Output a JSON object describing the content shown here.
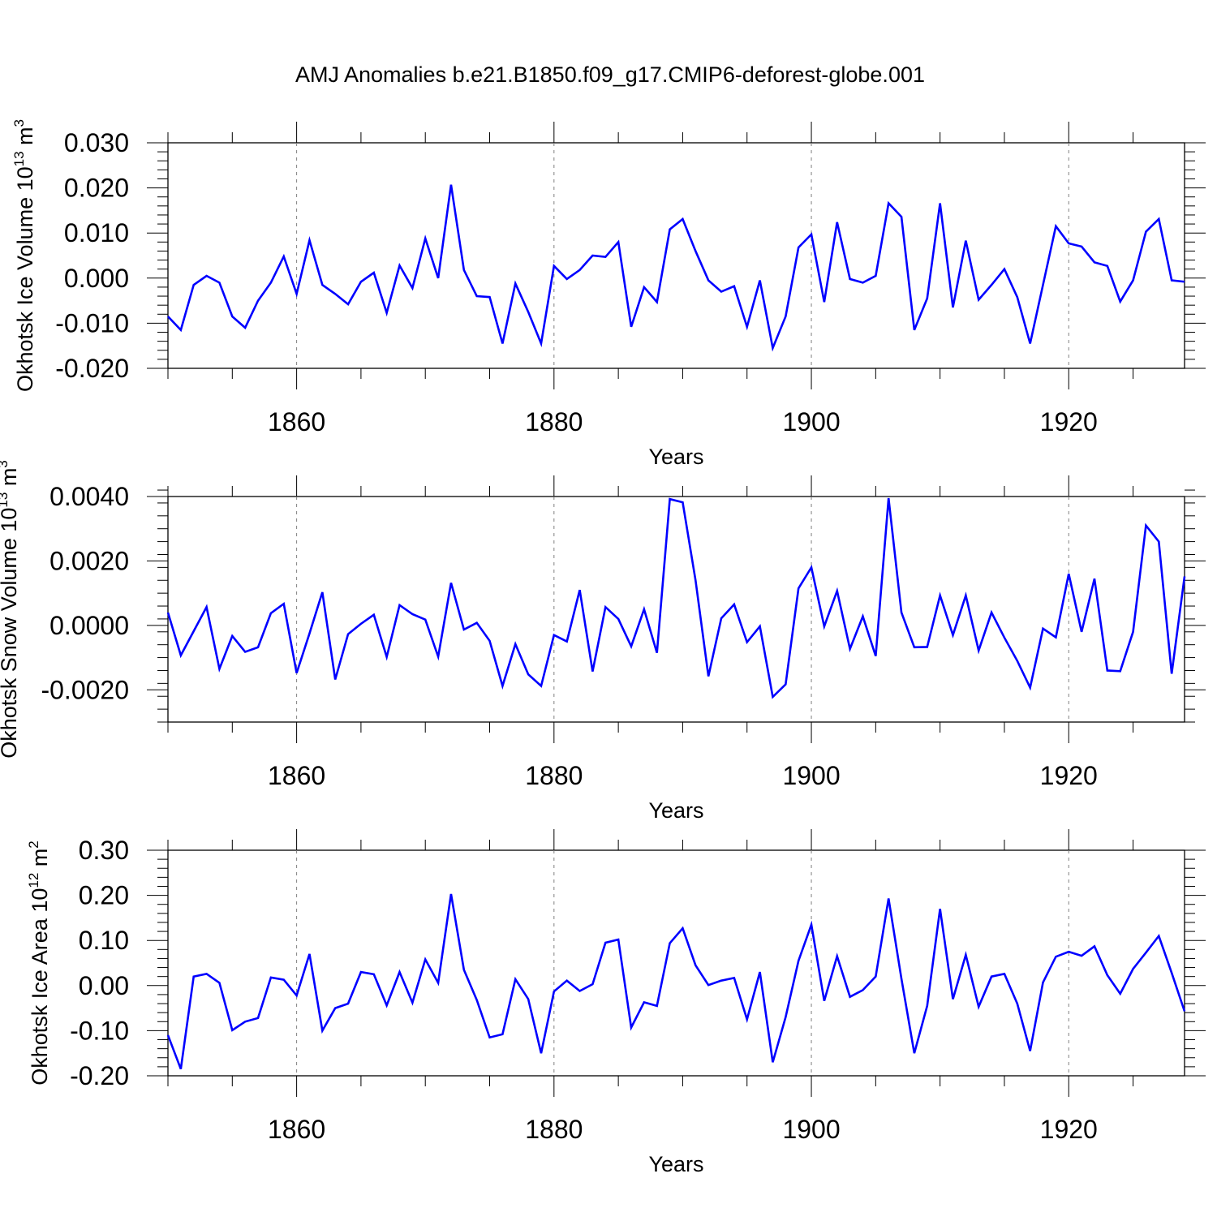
{
  "title": "AMJ Anomalies b.e21.B1850.f09_g17.CMIP6-deforest-globe.001",
  "colors": {
    "line": "#0000ff",
    "axis": "#000000",
    "grid": "#808080",
    "background": "#ffffff"
  },
  "chart_data": [
    {
      "type": "line",
      "title": "",
      "ylabel_text": "Okhotsk Ice Volume 10",
      "ylabel_exp": "13",
      "ylabel_unit": " m",
      "ylabel_unit_exp": "3",
      "xlabel": "Years",
      "xlim": [
        1850,
        1929
      ],
      "ylim": [
        -0.02,
        0.03
      ],
      "xticks": [
        1860,
        1880,
        1900,
        1920
      ],
      "xtick_labels": [
        "1860",
        "1880",
        "1900",
        "1920"
      ],
      "yticks": [
        -0.02,
        -0.01,
        0.0,
        0.01,
        0.02,
        0.03
      ],
      "ytick_labels": [
        "-0.020",
        "-0.010",
        "0.000",
        "0.010",
        "0.020",
        "0.030"
      ],
      "ymajor_step": 0.01,
      "yminor_step": 0.002,
      "grid": "vertical dashed at major x ticks",
      "series": [
        {
          "name": "Okhotsk Ice Volume",
          "x_start": 1850,
          "values": [
            -0.0085,
            -0.0115,
            -0.0015,
            0.0005,
            -0.001,
            -0.0085,
            -0.011,
            -0.005,
            -0.001,
            0.0048,
            -0.0035,
            0.0084,
            -0.0015,
            -0.0035,
            -0.0058,
            -0.0008,
            0.0012,
            -0.0077,
            0.0028,
            -0.0022,
            0.0088,
            0.0,
            0.0207,
            0.0018,
            -0.004,
            -0.0042,
            -0.0145,
            -0.0012,
            -0.0075,
            -0.0145,
            0.0027,
            -0.0002,
            0.0018,
            0.005,
            0.0047,
            0.008,
            -0.0108,
            -0.002,
            -0.0053,
            0.0108,
            0.0131,
            0.006,
            -0.0005,
            -0.003,
            -0.0018,
            -0.0108,
            -0.0005,
            -0.0155,
            -0.0085,
            0.0068,
            0.0097,
            -0.0053,
            0.0124,
            -0.0002,
            -0.001,
            0.0005,
            0.0166,
            0.0136,
            -0.0115,
            -0.0045,
            0.0166,
            -0.0065,
            0.0083,
            -0.0048,
            -0.0015,
            0.002,
            -0.0042,
            -0.0145,
            -0.0015,
            0.0115,
            0.0077,
            0.007,
            0.0035,
            0.0027,
            -0.0052,
            -0.0005,
            0.0103,
            0.0131,
            -0.0005,
            -0.0008
          ]
        }
      ]
    },
    {
      "type": "line",
      "title": "",
      "ylabel_text": "Okhotsk Snow Volume 10",
      "ylabel_exp": "13",
      "ylabel_unit": " m",
      "ylabel_unit_exp": "3",
      "xlabel": "Years",
      "xlim": [
        1850,
        1929
      ],
      "ylim": [
        -0.003,
        0.004
      ],
      "xticks": [
        1860,
        1880,
        1900,
        1920
      ],
      "xtick_labels": [
        "1860",
        "1880",
        "1900",
        "1920"
      ],
      "yticks": [
        -0.002,
        0.0,
        0.002,
        0.004
      ],
      "ytick_labels": [
        "-0.0020",
        "0.0000",
        "0.0020",
        "0.0040"
      ],
      "ymajor_step": 0.002,
      "yminor_step": 0.0004,
      "grid": "vertical dashed at major x ticks",
      "series": [
        {
          "name": "Okhotsk Snow Volume",
          "x_start": 1850,
          "values": [
            0.0004,
            -0.00093,
            -0.00018,
            0.00057,
            -0.00135,
            -0.00033,
            -0.00082,
            -0.00068,
            0.00038,
            0.00067,
            -0.00148,
            -0.00025,
            0.00103,
            -0.00168,
            -0.00027,
            5e-05,
            0.00033,
            -0.00098,
            0.00063,
            0.00035,
            0.00018,
            -0.00097,
            0.00132,
            -0.00013,
            8e-05,
            -0.00048,
            -0.00188,
            -0.00058,
            -0.00152,
            -0.00188,
            -0.0003,
            -0.0005,
            0.0011,
            -0.00143,
            0.00057,
            0.0002,
            -0.00065,
            0.0005,
            -0.00085,
            0.00392,
            0.00382,
            0.0014,
            -0.00158,
            0.00022,
            0.00065,
            -0.00052,
            -3e-05,
            -0.00222,
            -0.00183,
            0.00115,
            0.0018,
            -3e-05,
            0.00107,
            -0.00073,
            0.00028,
            -0.00095,
            0.00395,
            0.0004,
            -0.00068,
            -0.00067,
            0.00093,
            -0.0003,
            0.00093,
            -0.00078,
            0.0004,
            -0.00038,
            -0.0011,
            -0.00193,
            -0.0001,
            -0.00037,
            0.0016,
            -0.0002,
            0.00145,
            -0.0014,
            -0.00142,
            -0.0002,
            0.0031,
            0.0026,
            -0.0015,
            0.00152
          ]
        }
      ]
    },
    {
      "type": "line",
      "title": "",
      "ylabel_text": "Okhotsk Ice Area 10",
      "ylabel_exp": "12",
      "ylabel_unit": " m",
      "ylabel_unit_exp": "2",
      "xlabel": "Years",
      "xlim": [
        1850,
        1929
      ],
      "ylim": [
        -0.2,
        0.3
      ],
      "xticks": [
        1860,
        1880,
        1900,
        1920
      ],
      "xtick_labels": [
        "1860",
        "1880",
        "1900",
        "1920"
      ],
      "yticks": [
        -0.2,
        -0.1,
        0.0,
        0.1,
        0.2,
        0.3
      ],
      "ytick_labels": [
        "-0.20",
        "-0.10",
        "0.00",
        "0.10",
        "0.20",
        "0.30"
      ],
      "ymajor_step": 0.1,
      "yminor_step": 0.02,
      "grid": "vertical dashed at major x ticks",
      "series": [
        {
          "name": "Okhotsk Ice Area",
          "x_start": 1850,
          "values": [
            -0.11,
            -0.185,
            0.02,
            0.026,
            0.006,
            -0.099,
            -0.08,
            -0.072,
            0.018,
            0.013,
            -0.022,
            0.07,
            -0.1,
            -0.05,
            -0.04,
            0.03,
            0.025,
            -0.044,
            0.03,
            -0.038,
            0.058,
            0.006,
            0.203,
            0.035,
            -0.032,
            -0.115,
            -0.108,
            0.014,
            -0.03,
            -0.15,
            -0.013,
            0.011,
            -0.012,
            0.003,
            0.095,
            0.102,
            -0.093,
            -0.037,
            -0.045,
            0.094,
            0.127,
            0.045,
            0.001,
            0.011,
            0.017,
            -0.075,
            0.03,
            -0.17,
            -0.07,
            0.055,
            0.135,
            -0.034,
            0.065,
            -0.025,
            -0.01,
            0.02,
            0.193,
            0.015,
            -0.15,
            -0.045,
            0.17,
            -0.03,
            0.068,
            -0.047,
            0.02,
            0.026,
            -0.04,
            -0.145,
            0.007,
            0.064,
            0.075,
            0.066,
            0.087,
            0.023,
            -0.018,
            0.037,
            0.073,
            0.11,
            0.028,
            -0.057
          ]
        }
      ]
    }
  ]
}
